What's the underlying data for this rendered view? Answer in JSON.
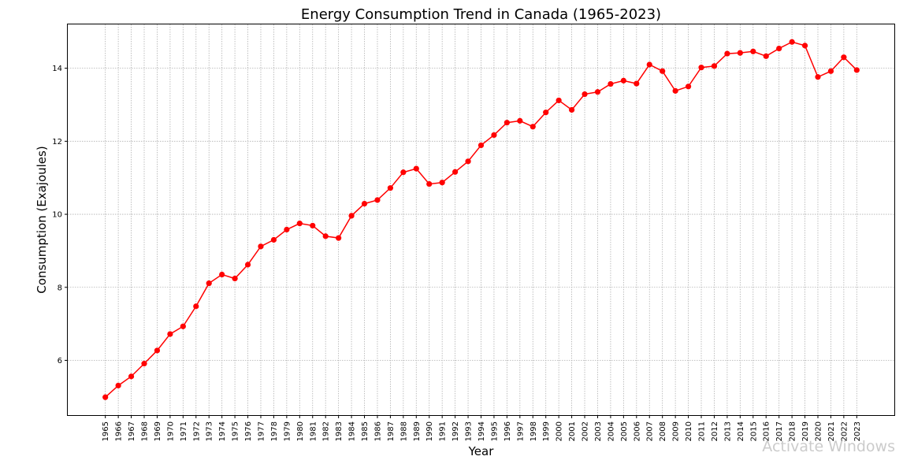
{
  "chart_data": {
    "type": "line",
    "title": "Energy Consumption Trend in Canada (1965-2023)",
    "xlabel": "Year",
    "ylabel": "Consumption (Exajoules)",
    "ylim": [
      4.5,
      15.2
    ],
    "yticks": [
      6,
      8,
      10,
      12,
      14
    ],
    "grid": true,
    "color": "#ff0000",
    "x": [
      1965,
      1966,
      1967,
      1968,
      1969,
      1970,
      1971,
      1972,
      1973,
      1974,
      1975,
      1976,
      1977,
      1978,
      1979,
      1980,
      1981,
      1982,
      1983,
      1984,
      1985,
      1986,
      1987,
      1988,
      1989,
      1990,
      1991,
      1992,
      1993,
      1994,
      1995,
      1996,
      1997,
      1998,
      1999,
      2000,
      2001,
      2002,
      2003,
      2004,
      2005,
      2006,
      2007,
      2008,
      2009,
      2010,
      2011,
      2012,
      2013,
      2014,
      2015,
      2016,
      2017,
      2018,
      2019,
      2020,
      2021,
      2022,
      2023
    ],
    "y": [
      4.99,
      5.31,
      5.56,
      5.91,
      6.27,
      6.72,
      6.93,
      7.48,
      8.11,
      8.35,
      8.24,
      8.62,
      9.12,
      9.3,
      9.58,
      9.75,
      9.69,
      9.4,
      9.35,
      9.96,
      10.29,
      10.39,
      10.72,
      11.15,
      11.25,
      10.83,
      10.87,
      11.16,
      11.45,
      11.89,
      12.17,
      12.51,
      12.56,
      12.4,
      12.79,
      13.12,
      12.86,
      13.29,
      13.35,
      13.57,
      13.66,
      13.58,
      14.1,
      13.92,
      13.38,
      13.5,
      14.02,
      14.06,
      14.4,
      14.42,
      14.46,
      14.33,
      14.54,
      14.72,
      14.62,
      13.76,
      13.92,
      14.3,
      13.95
    ]
  },
  "watermark_text": "Activate Windows"
}
